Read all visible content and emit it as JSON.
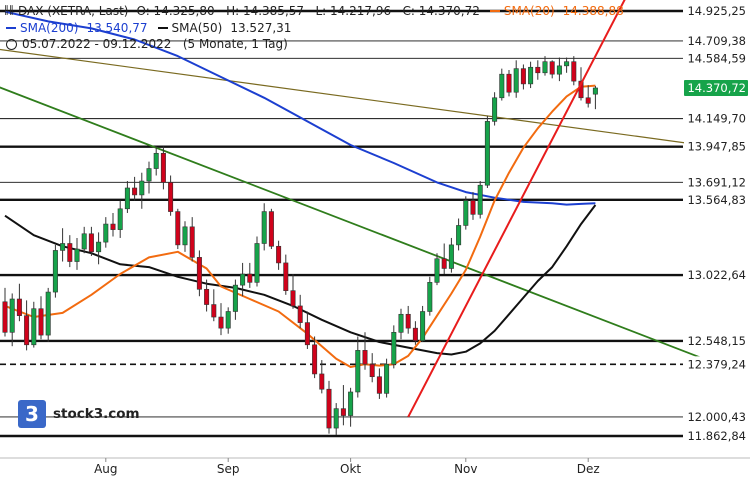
{
  "legend": {
    "instrument": "DAX (XETRA, Last)",
    "ohlc": "O: 14.325,80   H: 14.385,57   L: 14.217,96   C: 14.370,72",
    "sma20_label": "SMA(20)",
    "sma20_value": "14.388,88",
    "sma200_label": "SMA(200)",
    "sma200_value": "13.540,77",
    "sma50_label": "SMA(50)",
    "sma50_value": "13.527,31",
    "period": "05.07.2022 - 09.12.2022   (5 Monate, 1 Tag)"
  },
  "logo_text": "stock3.com",
  "logo_glyph": "3",
  "colors": {
    "up": "#16a34a",
    "down": "#d0021b",
    "sma20": "#f26b10",
    "sma50": "#111111",
    "sma200": "#1c3fd0",
    "trend_red": "#e81c1c",
    "trend_green": "#2f7d1c",
    "trend_olive": "#7a6a20",
    "price_tag": "#16a34a",
    "logo": "#3a68c8"
  },
  "chart_data": {
    "type": "candlestick",
    "x_labels": [
      "Aug",
      "Sep",
      "Okt",
      "Nov",
      "Dez"
    ],
    "last_price": "14.370,72",
    "levels": [
      {
        "value": 14925.25,
        "label": "14.925,25",
        "style": "thick"
      },
      {
        "value": 14709.38,
        "label": "14.709,38",
        "style": "thin"
      },
      {
        "value": 14584.59,
        "label": "14.584,59",
        "style": "thin"
      },
      {
        "value": 14149.7,
        "label": "14.149,70",
        "style": "thin"
      },
      {
        "value": 13947.85,
        "label": "13.947,85",
        "style": "thick"
      },
      {
        "value": 13691.12,
        "label": "13.691,12",
        "style": "thin"
      },
      {
        "value": 13564.83,
        "label": "13.564,83",
        "style": "thick"
      },
      {
        "value": 13022.64,
        "label": "13.022,64",
        "style": "thick"
      },
      {
        "value": 12548.15,
        "label": "12.548,15",
        "style": "thick"
      },
      {
        "value": 12379.24,
        "label": "12.379,24",
        "style": "dashed"
      },
      {
        "value": 12000.43,
        "label": "12.000,43",
        "style": "thin"
      },
      {
        "value": 11862.84,
        "label": "11.862,84",
        "style": "thick"
      }
    ],
    "y_range": [
      11800,
      15000
    ],
    "candles": [
      [
        12830,
        12930,
        12580,
        12610
      ],
      [
        12610,
        12890,
        12510,
        12850
      ],
      [
        12850,
        12960,
        12690,
        12730
      ],
      [
        12730,
        12840,
        12480,
        12520
      ],
      [
        12520,
        12830,
        12500,
        12780
      ],
      [
        12780,
        12870,
        12560,
        12590
      ],
      [
        12590,
        12930,
        12540,
        12900
      ],
      [
        12900,
        13240,
        12860,
        13200
      ],
      [
        13200,
        13360,
        13120,
        13250
      ],
      [
        13250,
        13310,
        13080,
        13120
      ],
      [
        13120,
        13290,
        13060,
        13210
      ],
      [
        13210,
        13370,
        13180,
        13320
      ],
      [
        13320,
        13370,
        13160,
        13190
      ],
      [
        13190,
        13330,
        13100,
        13260
      ],
      [
        13260,
        13440,
        13220,
        13390
      ],
      [
        13390,
        13470,
        13300,
        13350
      ],
      [
        13350,
        13560,
        13290,
        13500
      ],
      [
        13500,
        13700,
        13470,
        13650
      ],
      [
        13650,
        13730,
        13560,
        13600
      ],
      [
        13600,
        13760,
        13500,
        13700
      ],
      [
        13700,
        13840,
        13610,
        13790
      ],
      [
        13790,
        13950,
        13740,
        13900
      ],
      [
        13900,
        13950,
        13640,
        13690
      ],
      [
        13690,
        13740,
        13450,
        13480
      ],
      [
        13480,
        13500,
        13210,
        13240
      ],
      [
        13240,
        13410,
        13190,
        13370
      ],
      [
        13370,
        13440,
        13120,
        13150
      ],
      [
        13150,
        13200,
        12870,
        12920
      ],
      [
        12920,
        12990,
        12760,
        12810
      ],
      [
        12810,
        12920,
        12690,
        12720
      ],
      [
        12720,
        12820,
        12590,
        12640
      ],
      [
        12640,
        12790,
        12600,
        12760
      ],
      [
        12760,
        12990,
        12700,
        12950
      ],
      [
        12950,
        13110,
        12870,
        13030
      ],
      [
        13030,
        13110,
        12930,
        12970
      ],
      [
        12970,
        13300,
        12940,
        13250
      ],
      [
        13250,
        13540,
        13200,
        13480
      ],
      [
        13480,
        13500,
        13210,
        13230
      ],
      [
        13230,
        13270,
        13060,
        13110
      ],
      [
        13110,
        13170,
        12880,
        12910
      ],
      [
        12910,
        13030,
        12780,
        12800
      ],
      [
        12800,
        12880,
        12640,
        12680
      ],
      [
        12680,
        12760,
        12490,
        12520
      ],
      [
        12520,
        12580,
        12280,
        12310
      ],
      [
        12310,
        12410,
        12170,
        12200
      ],
      [
        12200,
        12260,
        11880,
        11920
      ],
      [
        11920,
        12100,
        11870,
        12060
      ],
      [
        12060,
        12230,
        11940,
        12010
      ],
      [
        12010,
        12210,
        11930,
        12180
      ],
      [
        12180,
        12580,
        12140,
        12480
      ],
      [
        12480,
        12610,
        12340,
        12380
      ],
      [
        12380,
        12460,
        12250,
        12290
      ],
      [
        12290,
        12350,
        12130,
        12170
      ],
      [
        12170,
        12420,
        12140,
        12380
      ],
      [
        12380,
        12660,
        12350,
        12610
      ],
      [
        12610,
        12780,
        12560,
        12740
      ],
      [
        12740,
        12800,
        12600,
        12640
      ],
      [
        12640,
        12690,
        12520,
        12550
      ],
      [
        12550,
        12800,
        12540,
        12760
      ],
      [
        12760,
        13010,
        12730,
        12970
      ],
      [
        12970,
        13180,
        12950,
        13140
      ],
      [
        13140,
        13250,
        13030,
        13070
      ],
      [
        13070,
        13290,
        13040,
        13240
      ],
      [
        13240,
        13430,
        13200,
        13380
      ],
      [
        13380,
        13590,
        13350,
        13560
      ],
      [
        13560,
        13620,
        13420,
        13460
      ],
      [
        13460,
        13700,
        13430,
        13670
      ],
      [
        13670,
        14170,
        13650,
        14130
      ],
      [
        14130,
        14340,
        14100,
        14300
      ],
      [
        14300,
        14510,
        14280,
        14470
      ],
      [
        14470,
        14500,
        14310,
        14340
      ],
      [
        14340,
        14570,
        14300,
        14510
      ],
      [
        14510,
        14540,
        14360,
        14400
      ],
      [
        14400,
        14560,
        14370,
        14520
      ],
      [
        14520,
        14570,
        14430,
        14480
      ],
      [
        14480,
        14600,
        14460,
        14560
      ],
      [
        14560,
        14570,
        14440,
        14470
      ],
      [
        14470,
        14590,
        14420,
        14530
      ],
      [
        14530,
        14590,
        14480,
        14560
      ],
      [
        14560,
        14600,
        14390,
        14420
      ],
      [
        14420,
        14520,
        14280,
        14300
      ],
      [
        14300,
        14390,
        14230,
        14260
      ],
      [
        14325.8,
        14385.57,
        14217.96,
        14370.72
      ]
    ],
    "sma20": [
      [
        0,
        12800
      ],
      [
        4,
        12720
      ],
      [
        8,
        12750
      ],
      [
        12,
        12880
      ],
      [
        16,
        13030
      ],
      [
        20,
        13150
      ],
      [
        24,
        13190
      ],
      [
        28,
        13070
      ],
      [
        30,
        12940
      ],
      [
        34,
        12850
      ],
      [
        38,
        12760
      ],
      [
        42,
        12600
      ],
      [
        44,
        12510
      ],
      [
        46,
        12420
      ],
      [
        48,
        12360
      ],
      [
        50,
        12380
      ],
      [
        52,
        12370
      ],
      [
        54,
        12380
      ],
      [
        56,
        12440
      ],
      [
        58,
        12570
      ],
      [
        60,
        12730
      ],
      [
        62,
        12890
      ],
      [
        64,
        13060
      ],
      [
        66,
        13300
      ],
      [
        68,
        13560
      ],
      [
        70,
        13760
      ],
      [
        72,
        13940
      ],
      [
        74,
        14080
      ],
      [
        76,
        14200
      ],
      [
        78,
        14310
      ],
      [
        80,
        14380
      ],
      [
        82,
        14388
      ]
    ],
    "sma50": [
      [
        0,
        13450
      ],
      [
        4,
        13310
      ],
      [
        8,
        13230
      ],
      [
        12,
        13180
      ],
      [
        16,
        13100
      ],
      [
        20,
        13080
      ],
      [
        24,
        13010
      ],
      [
        28,
        12960
      ],
      [
        32,
        12930
      ],
      [
        36,
        12880
      ],
      [
        40,
        12800
      ],
      [
        44,
        12700
      ],
      [
        48,
        12610
      ],
      [
        52,
        12540
      ],
      [
        56,
        12500
      ],
      [
        60,
        12460
      ],
      [
        62,
        12450
      ],
      [
        64,
        12470
      ],
      [
        66,
        12530
      ],
      [
        68,
        12620
      ],
      [
        70,
        12740
      ],
      [
        72,
        12860
      ],
      [
        74,
        12980
      ],
      [
        76,
        13080
      ],
      [
        78,
        13230
      ],
      [
        80,
        13390
      ],
      [
        82,
        13527
      ]
    ],
    "sma200": [
      [
        0,
        14920
      ],
      [
        6,
        14850
      ],
      [
        12,
        14800
      ],
      [
        18,
        14720
      ],
      [
        24,
        14600
      ],
      [
        30,
        14450
      ],
      [
        36,
        14300
      ],
      [
        42,
        14130
      ],
      [
        48,
        13960
      ],
      [
        54,
        13830
      ],
      [
        60,
        13690
      ],
      [
        64,
        13620
      ],
      [
        68,
        13580
      ],
      [
        72,
        13550
      ],
      [
        76,
        13540
      ],
      [
        78,
        13530
      ],
      [
        80,
        13535
      ],
      [
        82,
        13540
      ]
    ],
    "trendlines": [
      {
        "name": "red",
        "from": [
          56,
          12000
        ],
        "to": [
          87,
          15100
        ]
      },
      {
        "name": "green",
        "from": [
          -1,
          14380
        ],
        "to": [
          98,
          12400
        ]
      },
      {
        "name": "olive",
        "from": [
          -1,
          14650
        ],
        "to": [
          98,
          13950
        ]
      }
    ]
  }
}
